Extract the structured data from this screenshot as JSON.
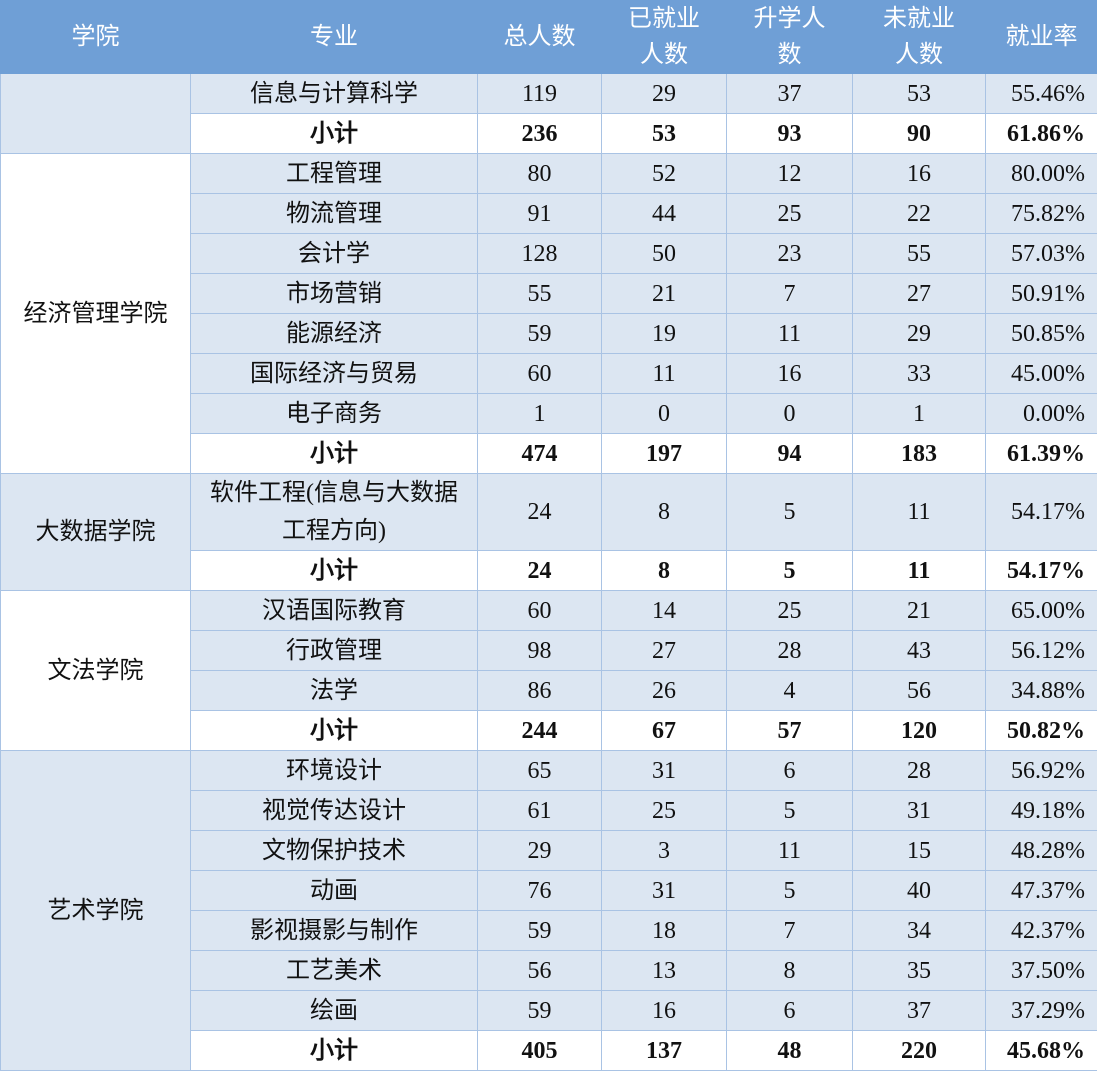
{
  "header": [
    "学院",
    "专业",
    "总人数",
    "已就业人数",
    "升学人数",
    "未就业人数",
    "就业率"
  ],
  "colleges": [
    {
      "name": null,
      "majors": [
        {
          "name": "信息与计算科学",
          "total": 119,
          "employed": 29,
          "further": 37,
          "unemployed": 53,
          "rate": "55.46%"
        }
      ],
      "subtotal": {
        "label": "小计",
        "total": 236,
        "employed": 53,
        "further": 93,
        "unemployed": 90,
        "rate": "61.86%"
      }
    },
    {
      "name": "经济管理学院",
      "majors": [
        {
          "name": "工程管理",
          "total": 80,
          "employed": 52,
          "further": 12,
          "unemployed": 16,
          "rate": "80.00%"
        },
        {
          "name": "物流管理",
          "total": 91,
          "employed": 44,
          "further": 25,
          "unemployed": 22,
          "rate": "75.82%"
        },
        {
          "name": "会计学",
          "total": 128,
          "employed": 50,
          "further": 23,
          "unemployed": 55,
          "rate": "57.03%"
        },
        {
          "name": "市场营销",
          "total": 55,
          "employed": 21,
          "further": 7,
          "unemployed": 27,
          "rate": "50.91%"
        },
        {
          "name": "能源经济",
          "total": 59,
          "employed": 19,
          "further": 11,
          "unemployed": 29,
          "rate": "50.85%"
        },
        {
          "name": "国际经济与贸易",
          "total": 60,
          "employed": 11,
          "further": 16,
          "unemployed": 33,
          "rate": "45.00%"
        },
        {
          "name": "电子商务",
          "total": 1,
          "employed": 0,
          "further": 0,
          "unemployed": 1,
          "rate": "0.00%"
        }
      ],
      "subtotal": {
        "label": "小计",
        "total": 474,
        "employed": 197,
        "further": 94,
        "unemployed": 183,
        "rate": "61.39%"
      }
    },
    {
      "name": "大数据学院",
      "majors": [
        {
          "name": "软件工程(信息与大数据工程方向)",
          "total": 24,
          "employed": 8,
          "further": 5,
          "unemployed": 11,
          "rate": "54.17%"
        }
      ],
      "subtotal": {
        "label": "小计",
        "total": 24,
        "employed": 8,
        "further": 5,
        "unemployed": 11,
        "rate": "54.17%"
      }
    },
    {
      "name": "文法学院",
      "majors": [
        {
          "name": "汉语国际教育",
          "total": 60,
          "employed": 14,
          "further": 25,
          "unemployed": 21,
          "rate": "65.00%"
        },
        {
          "name": "行政管理",
          "total": 98,
          "employed": 27,
          "further": 28,
          "unemployed": 43,
          "rate": "56.12%"
        },
        {
          "name": "法学",
          "total": 86,
          "employed": 26,
          "further": 4,
          "unemployed": 56,
          "rate": "34.88%"
        }
      ],
      "subtotal": {
        "label": "小计",
        "total": 244,
        "employed": 67,
        "further": 57,
        "unemployed": 120,
        "rate": "50.82%"
      }
    },
    {
      "name": "艺术学院",
      "majors": [
        {
          "name": "环境设计",
          "total": 65,
          "employed": 31,
          "further": 6,
          "unemployed": 28,
          "rate": "56.92%"
        },
        {
          "name": "视觉传达设计",
          "total": 61,
          "employed": 25,
          "further": 5,
          "unemployed": 31,
          "rate": "49.18%"
        },
        {
          "name": "文物保护技术",
          "total": 29,
          "employed": 3,
          "further": 11,
          "unemployed": 15,
          "rate": "48.28%"
        },
        {
          "name": "动画",
          "total": 76,
          "employed": 31,
          "further": 5,
          "unemployed": 40,
          "rate": "47.37%"
        },
        {
          "name": "影视摄影与制作",
          "total": 59,
          "employed": 18,
          "further": 7,
          "unemployed": 34,
          "rate": "42.37%"
        },
        {
          "name": "工艺美术",
          "total": 56,
          "employed": 13,
          "further": 8,
          "unemployed": 35,
          "rate": "37.50%"
        },
        {
          "name": "绘画",
          "total": 59,
          "employed": 16,
          "further": 6,
          "unemployed": 37,
          "rate": "37.29%"
        }
      ],
      "subtotal": {
        "label": "小计",
        "total": 405,
        "employed": 137,
        "further": 48,
        "unemployed": 220,
        "rate": "45.68%"
      }
    }
  ]
}
